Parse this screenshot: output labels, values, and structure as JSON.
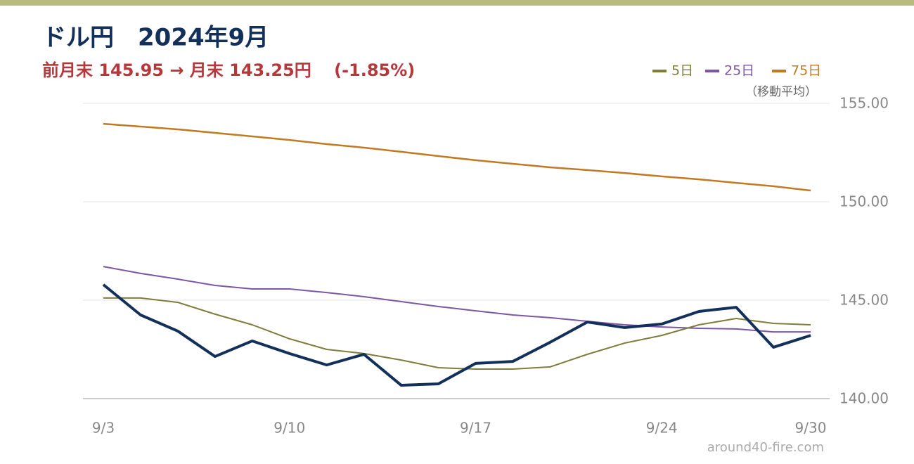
{
  "chart_data": {
    "type": "line",
    "title": "ドル円　2024年9月",
    "subtitle": "前月末 145.95 → 月末 143.25円　 (-1.85%)",
    "legend_note": "（移動平均）",
    "watermark": "around40-fire.com",
    "categories": [
      "9/3",
      null,
      null,
      null,
      null,
      "9/10",
      null,
      null,
      null,
      null,
      "9/17",
      null,
      null,
      null,
      null,
      "9/24",
      null,
      null,
      null,
      "9/30"
    ],
    "series": [
      {
        "color": "#13305a",
        "width": 4,
        "values": [
          145.79,
          144.25,
          143.43,
          142.14,
          142.93,
          142.29,
          141.71,
          142.25,
          140.68,
          140.75,
          141.79,
          141.89,
          142.86,
          143.89,
          143.61,
          143.79,
          144.43,
          144.64,
          142.61,
          143.21
        ]
      },
      {
        "name": "5日",
        "color": "#7d7d3c",
        "width": 2,
        "values": [
          145.11,
          145.11,
          144.89,
          144.29,
          143.75,
          143.04,
          142.5,
          142.29,
          141.96,
          141.57,
          141.5,
          141.5,
          141.61,
          142.25,
          142.82,
          143.21,
          143.75,
          144.07,
          143.82,
          143.75
        ]
      },
      {
        "name": "25日",
        "color": "#7d56a6",
        "width": 2,
        "values": [
          146.71,
          146.36,
          146.07,
          145.75,
          145.57,
          145.57,
          145.39,
          145.18,
          144.93,
          144.68,
          144.46,
          144.25,
          144.11,
          143.93,
          143.75,
          143.64,
          143.57,
          143.54,
          143.39,
          143.39
        ]
      },
      {
        "name": "75日",
        "color": "#c27a22",
        "width": 2.5,
        "values": [
          153.96,
          153.82,
          153.68,
          153.5,
          153.32,
          153.14,
          152.93,
          152.75,
          152.54,
          152.32,
          152.11,
          151.93,
          151.75,
          151.61,
          151.46,
          151.29,
          151.14,
          150.96,
          150.79,
          150.57
        ]
      }
    ],
    "ylim": [
      140,
      155
    ],
    "yticks": [
      {
        "value": 140,
        "label": "140.00"
      },
      {
        "value": 145,
        "label": "145.00"
      },
      {
        "value": 150,
        "label": "150.00"
      },
      {
        "value": 155,
        "label": "155.00"
      }
    ],
    "grid": true
  }
}
